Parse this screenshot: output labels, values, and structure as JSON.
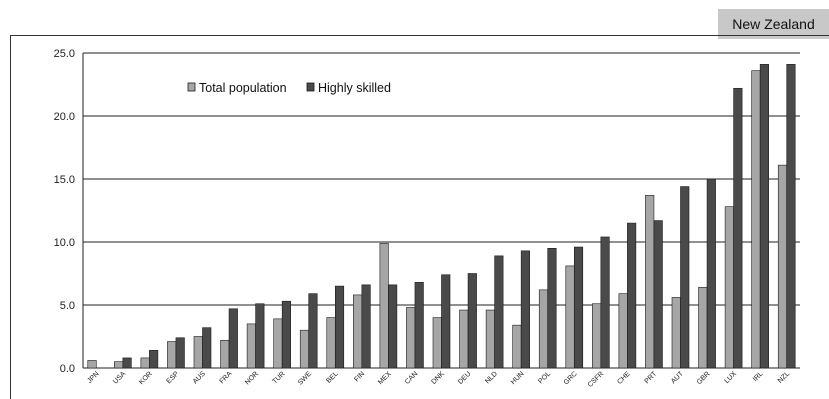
{
  "header": {
    "tab_label": "New Zealand"
  },
  "colors": {
    "total_population": "#a6a6a6",
    "highly_skilled": "#4a4a4a",
    "bar_stroke": "#1a1a1a",
    "grid": "#222222"
  },
  "chart_data": {
    "type": "bar",
    "title": "",
    "xlabel": "",
    "ylabel": "",
    "ylim": [
      0,
      25
    ],
    "yticks": [
      "0.0",
      "5.0",
      "10.0",
      "15.0",
      "20.0",
      "25.0"
    ],
    "grid": true,
    "legend": "top-left",
    "categories": [
      "JPN",
      "USA",
      "KOR",
      "ESP",
      "AUS",
      "FRA",
      "NOR",
      "TUR",
      "SWE",
      "BEL",
      "FIN",
      "MEX",
      "CAN",
      "DNK",
      "DEU",
      "NLD",
      "HUN",
      "POL",
      "GRC",
      "CSFR",
      "CHE",
      "PRT",
      "AUT",
      "GBR",
      "LUX",
      "IRL",
      "NZL"
    ],
    "series": [
      {
        "name": "Total population",
        "values": [
          0.6,
          0.5,
          0.8,
          2.1,
          2.5,
          2.2,
          3.5,
          3.9,
          3.0,
          4.0,
          5.8,
          9.9,
          4.8,
          4.0,
          4.6,
          4.6,
          3.4,
          6.2,
          8.1,
          5.1,
          5.9,
          13.7,
          5.6,
          6.4,
          12.8,
          23.6,
          16.1
        ]
      },
      {
        "name": "Highly skilled",
        "values": [
          0.0,
          0.8,
          1.4,
          2.4,
          3.2,
          4.7,
          5.1,
          5.3,
          5.9,
          6.5,
          6.6,
          6.6,
          6.8,
          7.4,
          7.5,
          8.9,
          9.3,
          9.5,
          9.6,
          10.4,
          11.5,
          11.7,
          14.4,
          15.0,
          22.2,
          24.1,
          24.1
        ]
      }
    ]
  }
}
